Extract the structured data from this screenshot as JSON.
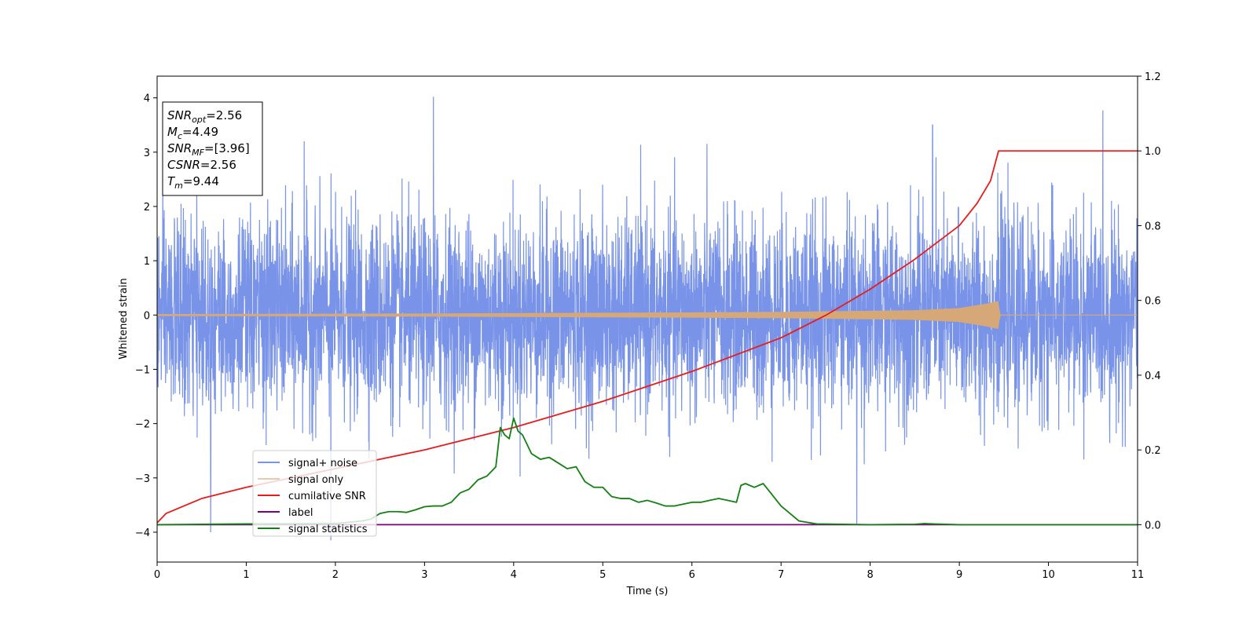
{
  "chart_data": {
    "type": "line",
    "xlabel": "Time (s)",
    "ylabel": "Whitened strain",
    "xlim": [
      0,
      11
    ],
    "ylim_left": [
      -4.55,
      4.4
    ],
    "ylim_right": [
      -0.1,
      1.2
    ],
    "x_ticks": [
      0,
      1,
      2,
      3,
      4,
      5,
      6,
      7,
      8,
      9,
      10,
      11
    ],
    "y_ticks_left": [
      -4,
      -3,
      -2,
      -1,
      0,
      1,
      2,
      3,
      4
    ],
    "y_ticks_right": [
      0.0,
      0.2,
      0.4,
      0.6,
      0.8,
      1.0,
      1.2
    ],
    "x_tick_labels": [
      "0",
      "1",
      "2",
      "3",
      "4",
      "5",
      "6",
      "7",
      "8",
      "9",
      "10",
      "11"
    ],
    "y_tick_labels_left": [
      "−4",
      "−3",
      "−2",
      "−1",
      "0",
      "1",
      "2",
      "3",
      "4"
    ],
    "y_tick_labels_right": [
      "0.0",
      "0.2",
      "0.4",
      "0.6",
      "0.8",
      "1.0",
      "1.2"
    ],
    "grid": false,
    "legend_position": "lower-left",
    "annotation": [
      {
        "label": "SNR",
        "sub": "opt",
        "value": "=2.56"
      },
      {
        "label": "M",
        "sub": "c",
        "value": "=4.49"
      },
      {
        "label": "SNR",
        "sub": "MF",
        "value": "=[3.96]"
      },
      {
        "label": "CSNR",
        "sub": "",
        "value": "=2.56"
      },
      {
        "label": "T",
        "sub": "m",
        "value": "=9.44"
      }
    ],
    "series": [
      {
        "name": "signal+ noise",
        "axis": "left",
        "color": "#7893e8",
        "description": "whitened noise, approx. Gaussian, std ~0.9, spikes to about 4.0 and -4.15",
        "extremes": [
          [
            3.1,
            4.02
          ],
          [
            1.95,
            -4.15
          ],
          [
            0.6,
            -4.0
          ],
          [
            7.85,
            -3.85
          ],
          [
            8.7,
            3.5
          ],
          [
            1.65,
            3.2
          ]
        ]
      },
      {
        "name": "signal only",
        "axis": "left",
        "color": "#d6a878",
        "envelope_points": [
          [
            0.0,
            0.01
          ],
          [
            3.0,
            0.02
          ],
          [
            6.0,
            0.04
          ],
          [
            7.0,
            0.05
          ],
          [
            8.0,
            0.07
          ],
          [
            8.5,
            0.08
          ],
          [
            9.0,
            0.12
          ],
          [
            9.3,
            0.2
          ],
          [
            9.44,
            0.25
          ],
          [
            9.45,
            0.0
          ],
          [
            11.0,
            0.0
          ]
        ]
      },
      {
        "name": "cumilative SNR",
        "axis": "right",
        "color": "#e81c1c",
        "points": [
          [
            0.0,
            0.005
          ],
          [
            0.1,
            0.03
          ],
          [
            0.5,
            0.07
          ],
          [
            1.0,
            0.1
          ],
          [
            2.0,
            0.15
          ],
          [
            3.0,
            0.2
          ],
          [
            4.0,
            0.26
          ],
          [
            5.0,
            0.33
          ],
          [
            6.0,
            0.41
          ],
          [
            7.0,
            0.5
          ],
          [
            7.5,
            0.56
          ],
          [
            8.0,
            0.63
          ],
          [
            8.5,
            0.71
          ],
          [
            9.0,
            0.8
          ],
          [
            9.2,
            0.86
          ],
          [
            9.35,
            0.92
          ],
          [
            9.44,
            1.0
          ],
          [
            11.0,
            1.0
          ]
        ]
      },
      {
        "name": "label",
        "axis": "right",
        "color": "#800080",
        "points": [
          [
            0.0,
            0.0
          ],
          [
            11.0,
            0.0
          ]
        ]
      },
      {
        "name": "signal statistics",
        "axis": "right",
        "color": "#138013",
        "points": [
          [
            0.0,
            0.0
          ],
          [
            1.0,
            0.002
          ],
          [
            2.0,
            0.003
          ],
          [
            2.3,
            0.01
          ],
          [
            2.4,
            0.015
          ],
          [
            2.5,
            0.03
          ],
          [
            2.6,
            0.035
          ],
          [
            2.7,
            0.035
          ],
          [
            2.8,
            0.033
          ],
          [
            2.9,
            0.04
          ],
          [
            3.0,
            0.048
          ],
          [
            3.1,
            0.05
          ],
          [
            3.2,
            0.05
          ],
          [
            3.3,
            0.06
          ],
          [
            3.4,
            0.085
          ],
          [
            3.5,
            0.095
          ],
          [
            3.6,
            0.12
          ],
          [
            3.7,
            0.13
          ],
          [
            3.8,
            0.155
          ],
          [
            3.85,
            0.26
          ],
          [
            3.9,
            0.24
          ],
          [
            3.95,
            0.23
          ],
          [
            4.0,
            0.285
          ],
          [
            4.05,
            0.25
          ],
          [
            4.1,
            0.24
          ],
          [
            4.2,
            0.19
          ],
          [
            4.3,
            0.175
          ],
          [
            4.4,
            0.18
          ],
          [
            4.5,
            0.165
          ],
          [
            4.6,
            0.15
          ],
          [
            4.7,
            0.155
          ],
          [
            4.8,
            0.115
          ],
          [
            4.9,
            0.1
          ],
          [
            5.0,
            0.1
          ],
          [
            5.1,
            0.075
          ],
          [
            5.2,
            0.07
          ],
          [
            5.3,
            0.07
          ],
          [
            5.4,
            0.06
          ],
          [
            5.5,
            0.065
          ],
          [
            5.6,
            0.058
          ],
          [
            5.7,
            0.05
          ],
          [
            5.8,
            0.05
          ],
          [
            5.9,
            0.055
          ],
          [
            6.0,
            0.06
          ],
          [
            6.1,
            0.06
          ],
          [
            6.2,
            0.065
          ],
          [
            6.3,
            0.07
          ],
          [
            6.4,
            0.065
          ],
          [
            6.5,
            0.06
          ],
          [
            6.55,
            0.105
          ],
          [
            6.6,
            0.11
          ],
          [
            6.7,
            0.1
          ],
          [
            6.8,
            0.11
          ],
          [
            6.9,
            0.08
          ],
          [
            7.0,
            0.05
          ],
          [
            7.1,
            0.03
          ],
          [
            7.2,
            0.01
          ],
          [
            7.4,
            0.002
          ],
          [
            8.0,
            0.0
          ],
          [
            8.5,
            0.001
          ],
          [
            8.6,
            0.003
          ],
          [
            8.7,
            0.002
          ],
          [
            9.0,
            0.0
          ],
          [
            11.0,
            0.0
          ]
        ]
      }
    ]
  }
}
